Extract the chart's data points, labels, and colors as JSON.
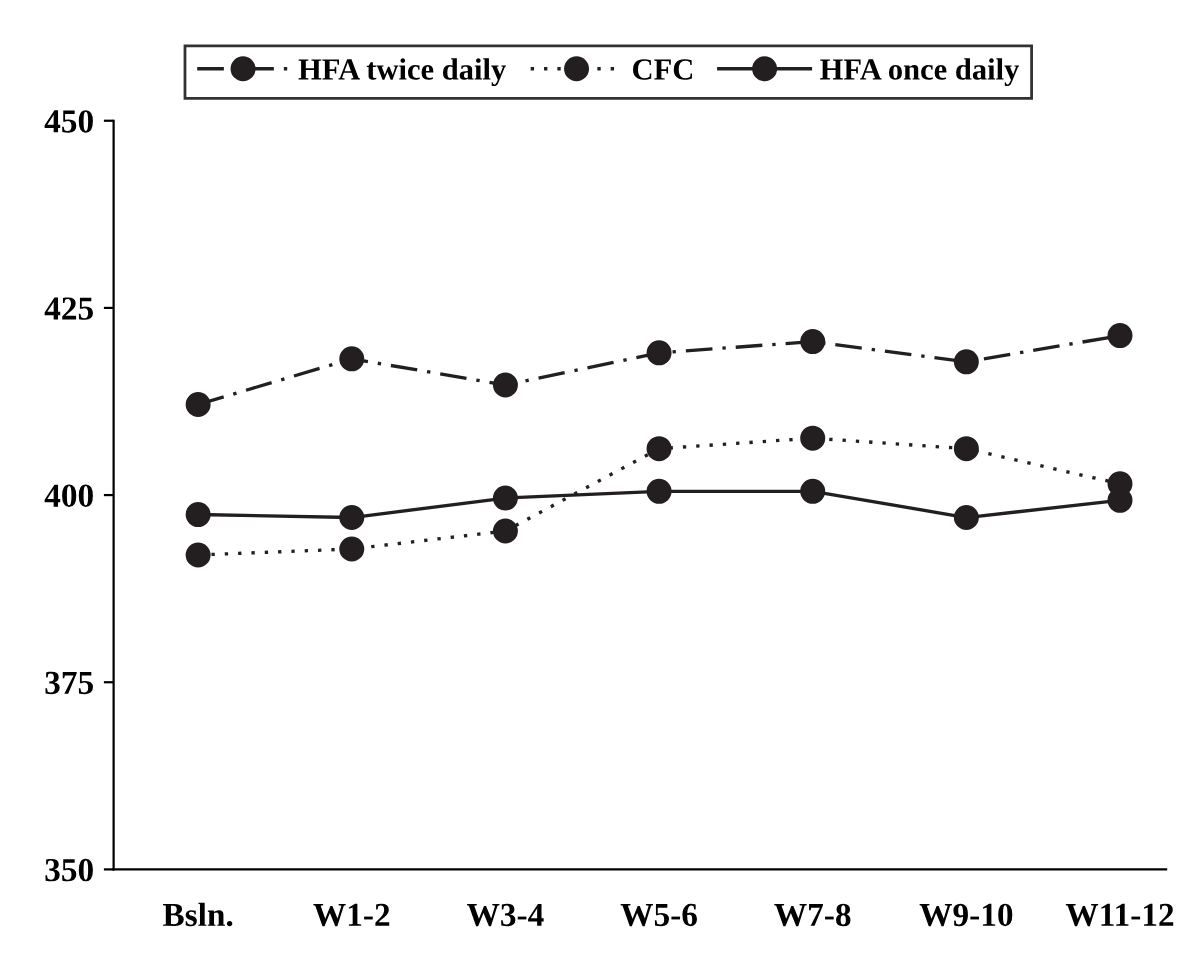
{
  "chart_data": {
    "type": "line",
    "categories": [
      "Bsln.",
      "W1-2",
      "W3-4",
      "W5-6",
      "W7-8",
      "W9-10",
      "W11-12"
    ],
    "series": [
      {
        "name": "HFA twice daily",
        "color": "#231f20",
        "line_style": "dashdot",
        "values": [
          412.1,
          418.2,
          414.7,
          419.0,
          420.5,
          417.8,
          421.3
        ]
      },
      {
        "name": "CFC",
        "color": "#231f20",
        "line_style": "dotted",
        "values": [
          392.0,
          392.8,
          395.2,
          406.2,
          407.6,
          406.2,
          401.5
        ]
      },
      {
        "name": "HFA once daily",
        "color": "#231f20",
        "line_style": "solid",
        "values": [
          397.4,
          397.0,
          399.6,
          400.5,
          400.5,
          397.0,
          399.3
        ]
      }
    ],
    "ylim": [
      350,
      450
    ],
    "yticks": [
      350,
      375,
      400,
      425,
      450
    ],
    "marker": "circle",
    "grid": false,
    "legend": "top"
  }
}
